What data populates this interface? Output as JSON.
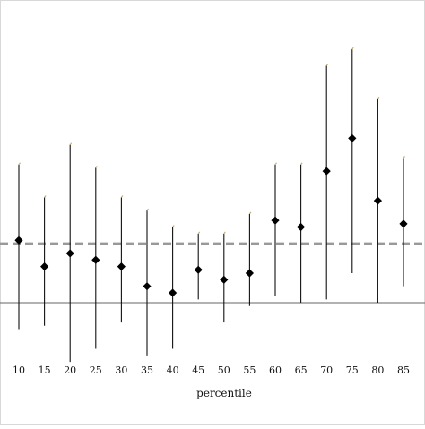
{
  "chart_data": {
    "type": "scatter",
    "title": "",
    "xlabel": "percentile",
    "ylabel": "",
    "categories": [
      "10",
      "15",
      "20",
      "25",
      "30",
      "35",
      "40",
      "45",
      "50",
      "55",
      "60",
      "65",
      "70",
      "75",
      "80",
      "85"
    ],
    "series": [
      {
        "values": [
          0.19,
          0.11,
          0.15,
          0.13,
          0.11,
          0.05,
          0.03,
          0.1,
          0.07,
          0.09,
          0.25,
          0.23,
          0.4,
          0.5,
          0.31,
          0.24
        ],
        "ci_low": [
          -0.08,
          -0.07,
          -0.18,
          -0.14,
          -0.06,
          -0.16,
          -0.14,
          0.01,
          -0.06,
          -0.01,
          0.02,
          0.0,
          0.01,
          0.09,
          0.0,
          0.05
        ],
        "ci_high": [
          0.42,
          0.32,
          0.48,
          0.41,
          0.32,
          0.28,
          0.23,
          0.21,
          0.21,
          0.27,
          0.42,
          0.42,
          0.72,
          0.77,
          0.62,
          0.44
        ]
      }
    ],
    "reference_lines": [
      {
        "value": 0,
        "style": "solid",
        "color": "#666666"
      },
      {
        "value": 0.18,
        "style": "dashed",
        "color": "#999999"
      }
    ],
    "ylim": [
      -0.37,
      0.92
    ],
    "y_ticks_visible": false,
    "grid": false,
    "legend": "none",
    "marker": "diamond",
    "marker_color": "#000000",
    "cap_color": "#c8b070"
  }
}
